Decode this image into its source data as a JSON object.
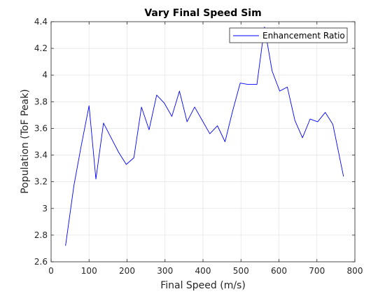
{
  "chart_data": {
    "type": "line",
    "title": "Vary Final Speed Sim",
    "xlabel": "Final Speed (m/s)",
    "ylabel": "Population (ToF Peak)",
    "xlim": [
      0,
      800
    ],
    "ylim": [
      2.6,
      4.4
    ],
    "xticks": [
      0,
      100,
      200,
      300,
      400,
      500,
      600,
      700,
      800
    ],
    "xtick_labels": [
      "0",
      "100",
      "200",
      "300",
      "400",
      "500",
      "600",
      "700",
      "800"
    ],
    "yticks": [
      2.6,
      2.8,
      3,
      3.2,
      3.4,
      3.6,
      3.8,
      4,
      4.2,
      4.4
    ],
    "ytick_labels": [
      "2.6",
      "2.8",
      "3",
      "3.2",
      "3.4",
      "3.6",
      "3.8",
      "4",
      "4.2",
      "4.4"
    ],
    "grid": true,
    "legend_position": "top-right",
    "series": [
      {
        "name": "Enhancement Ratio",
        "color": "#0000ff",
        "x": [
          38,
          60,
          78,
          100,
          118,
          138,
          158,
          178,
          198,
          218,
          238,
          258,
          278,
          298,
          318,
          338,
          358,
          378,
          398,
          418,
          438,
          458,
          478,
          498,
          518,
          542,
          562,
          582,
          602,
          622,
          642,
          662,
          682,
          702,
          722,
          742,
          770
        ],
        "y": [
          2.72,
          3.17,
          3.45,
          3.77,
          3.22,
          3.64,
          3.53,
          3.42,
          3.33,
          3.38,
          3.76,
          3.59,
          3.85,
          3.79,
          3.69,
          3.88,
          3.65,
          3.76,
          3.66,
          3.56,
          3.62,
          3.5,
          3.73,
          3.94,
          3.93,
          3.93,
          4.36,
          4.03,
          3.88,
          3.91,
          3.66,
          3.53,
          3.67,
          3.65,
          3.72,
          3.63,
          3.24
        ]
      }
    ]
  }
}
